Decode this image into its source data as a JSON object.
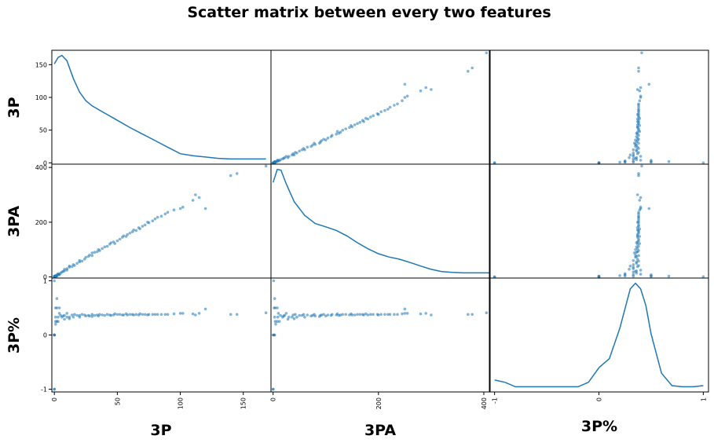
{
  "chart_data": {
    "type": "scatter",
    "title": "Scatter matrix between every two features",
    "variables": [
      "3P",
      "3PA",
      "3P%"
    ],
    "diagonal": "kde",
    "point_color": "#1f77b4",
    "line_color": "#1f77b4",
    "axes": {
      "3P": {
        "range": [
          -2,
          172
        ],
        "ticks": [
          0,
          50,
          100,
          150
        ],
        "tick_labels": [
          "0",
          "50",
          "100",
          "150"
        ]
      },
      "3PA": {
        "range": [
          -4,
          412
        ],
        "ticks": [
          0,
          200,
          400
        ],
        "tick_labels": [
          "0",
          "200",
          "400"
        ]
      },
      "3P%": {
        "range": [
          -1.05,
          1.05
        ],
        "ticks": [
          -1,
          0,
          1
        ],
        "tick_labels": [
          "-1",
          "0",
          "1"
        ]
      }
    },
    "kde": {
      "3P": {
        "x": [
          0,
          3,
          6,
          10,
          15,
          20,
          25,
          30,
          40,
          50,
          60,
          70,
          80,
          90,
          100,
          110,
          120,
          130,
          140,
          150,
          160,
          168
        ],
        "y": [
          150,
          160,
          163,
          155,
          128,
          107,
          94,
          86,
          75,
          64,
          53,
          43,
          33,
          23,
          13,
          10,
          8,
          6,
          5,
          5,
          5,
          5
        ]
      },
      "3PA": {
        "x": [
          0,
          8,
          15,
          25,
          40,
          60,
          80,
          100,
          120,
          140,
          160,
          180,
          200,
          220,
          240,
          260,
          280,
          300,
          320,
          340,
          360,
          380,
          400,
          410
        ],
        "y": [
          350,
          398,
          395,
          345,
          280,
          230,
          200,
          188,
          175,
          155,
          130,
          108,
          90,
          78,
          70,
          58,
          45,
          33,
          25,
          22,
          20,
          20,
          20,
          20
        ]
      },
      "3P%": {
        "x": [
          -1,
          -0.9,
          -0.8,
          -0.6,
          -0.4,
          -0.2,
          -0.1,
          0,
          0.1,
          0.2,
          0.3,
          0.35,
          0.4,
          0.45,
          0.5,
          0.6,
          0.7,
          0.8,
          0.9,
          1
        ],
        "y": [
          0.14,
          0.12,
          0.08,
          0.08,
          0.08,
          0.08,
          0.12,
          0.25,
          0.33,
          0.6,
          0.95,
          1.0,
          0.95,
          0.8,
          0.55,
          0.2,
          0.09,
          0.08,
          0.08,
          0.09
        ]
      }
    },
    "points": [
      {
        "3P": 0,
        "3PA": 0,
        "3P%": 0
      },
      {
        "3P": 0,
        "3PA": 1,
        "3P%": 0
      },
      {
        "3P": 0,
        "3PA": 2,
        "3P%": 0
      },
      {
        "3P": 0,
        "3PA": 3,
        "3P%": 0
      },
      {
        "3P": 0,
        "3PA": 0,
        "3P%": -1
      },
      {
        "3P": 0,
        "3PA": 0,
        "3P%": -1
      },
      {
        "3P": 0,
        "3PA": 1,
        "3P%": 1
      },
      {
        "3P": 1,
        "3PA": 2,
        "3P%": 0.5
      },
      {
        "3P": 1,
        "3PA": 3,
        "3P%": 0.33
      },
      {
        "3P": 1,
        "3PA": 4,
        "3P%": 0.25
      },
      {
        "3P": 1,
        "3PA": 5,
        "3P%": 0.2
      },
      {
        "3P": 2,
        "3PA": 4,
        "3P%": 0.5
      },
      {
        "3P": 2,
        "3PA": 3,
        "3P%": 0.67
      },
      {
        "3P": 2,
        "3PA": 8,
        "3P%": 0.25
      },
      {
        "3P": 3,
        "3PA": 9,
        "3P%": 0.33
      },
      {
        "3P": 3,
        "3PA": 12,
        "3P%": 0.25
      },
      {
        "3P": 4,
        "3PA": 8,
        "3P%": 0.5
      },
      {
        "3P": 4,
        "3PA": 10,
        "3P%": 0.4
      },
      {
        "3P": 5,
        "3PA": 14,
        "3P%": 0.36
      },
      {
        "3P": 6,
        "3PA": 18,
        "3P%": 0.33
      },
      {
        "3P": 7,
        "3PA": 20,
        "3P%": 0.35
      },
      {
        "3P": 8,
        "3PA": 22,
        "3P%": 0.36
      },
      {
        "3P": 8,
        "3PA": 28,
        "3P%": 0.29
      },
      {
        "3P": 10,
        "3PA": 25,
        "3P%": 0.4
      },
      {
        "3P": 10,
        "3PA": 30,
        "3P%": 0.33
      },
      {
        "3P": 12,
        "3PA": 36,
        "3P%": 0.33
      },
      {
        "3P": 12,
        "3PA": 40,
        "3P%": 0.3
      },
      {
        "3P": 14,
        "3PA": 38,
        "3P%": 0.37
      },
      {
        "3P": 15,
        "3PA": 45,
        "3P%": 0.33
      },
      {
        "3P": 16,
        "3PA": 42,
        "3P%": 0.38
      },
      {
        "3P": 18,
        "3PA": 50,
        "3P%": 0.36
      },
      {
        "3P": 20,
        "3PA": 55,
        "3P%": 0.36
      },
      {
        "3P": 20,
        "3PA": 60,
        "3P%": 0.33
      },
      {
        "3P": 22,
        "3PA": 58,
        "3P%": 0.38
      },
      {
        "3P": 24,
        "3PA": 65,
        "3P%": 0.37
      },
      {
        "3P": 25,
        "3PA": 72,
        "3P%": 0.35
      },
      {
        "3P": 27,
        "3PA": 75,
        "3P%": 0.36
      },
      {
        "3P": 28,
        "3PA": 80,
        "3P%": 0.35
      },
      {
        "3P": 30,
        "3PA": 78,
        "3P%": 0.38
      },
      {
        "3P": 30,
        "3PA": 88,
        "3P%": 0.34
      },
      {
        "3P": 32,
        "3PA": 90,
        "3P%": 0.36
      },
      {
        "3P": 34,
        "3PA": 92,
        "3P%": 0.37
      },
      {
        "3P": 35,
        "3PA": 100,
        "3P%": 0.35
      },
      {
        "3P": 36,
        "3PA": 96,
        "3P%": 0.38
      },
      {
        "3P": 38,
        "3PA": 104,
        "3P%": 0.37
      },
      {
        "3P": 40,
        "3PA": 110,
        "3P%": 0.36
      },
      {
        "3P": 42,
        "3PA": 112,
        "3P%": 0.38
      },
      {
        "3P": 44,
        "3PA": 120,
        "3P%": 0.37
      },
      {
        "3P": 45,
        "3PA": 125,
        "3P%": 0.36
      },
      {
        "3P": 47,
        "3PA": 128,
        "3P%": 0.37
      },
      {
        "3P": 48,
        "3PA": 122,
        "3P%": 0.39
      },
      {
        "3P": 50,
        "3PA": 132,
        "3P%": 0.38
      },
      {
        "3P": 52,
        "3PA": 138,
        "3P%": 0.38
      },
      {
        "3P": 54,
        "3PA": 145,
        "3P%": 0.37
      },
      {
        "3P": 55,
        "3PA": 150,
        "3P%": 0.37
      },
      {
        "3P": 57,
        "3PA": 148,
        "3P%": 0.39
      },
      {
        "3P": 58,
        "3PA": 155,
        "3P%": 0.37
      },
      {
        "3P": 60,
        "3PA": 160,
        "3P%": 0.38
      },
      {
        "3P": 62,
        "3PA": 165,
        "3P%": 0.38
      },
      {
        "3P": 63,
        "3PA": 172,
        "3P%": 0.37
      },
      {
        "3P": 65,
        "3PA": 170,
        "3P%": 0.38
      },
      {
        "3P": 67,
        "3PA": 180,
        "3P%": 0.37
      },
      {
        "3P": 68,
        "3PA": 176,
        "3P%": 0.39
      },
      {
        "3P": 70,
        "3PA": 185,
        "3P%": 0.38
      },
      {
        "3P": 72,
        "3PA": 190,
        "3P%": 0.38
      },
      {
        "3P": 74,
        "3PA": 200,
        "3P%": 0.37
      },
      {
        "3P": 75,
        "3PA": 198,
        "3P%": 0.38
      },
      {
        "3P": 78,
        "3PA": 205,
        "3P%": 0.38
      },
      {
        "3P": 80,
        "3PA": 212,
        "3P%": 0.38
      },
      {
        "3P": 82,
        "3PA": 218,
        "3P%": 0.38
      },
      {
        "3P": 85,
        "3PA": 222,
        "3P%": 0.38
      },
      {
        "3P": 88,
        "3PA": 230,
        "3P%": 0.38
      },
      {
        "3P": 90,
        "3PA": 236,
        "3P%": 0.38
      },
      {
        "3P": 95,
        "3PA": 245,
        "3P%": 0.39
      },
      {
        "3P": 100,
        "3PA": 250,
        "3P%": 0.4
      },
      {
        "3P": 102,
        "3PA": 255,
        "3P%": 0.4
      },
      {
        "3P": 110,
        "3PA": 280,
        "3P%": 0.39
      },
      {
        "3P": 112,
        "3PA": 300,
        "3P%": 0.37
      },
      {
        "3P": 115,
        "3PA": 290,
        "3P%": 0.4
      },
      {
        "3P": 120,
        "3PA": 250,
        "3P%": 0.48
      },
      {
        "3P": 140,
        "3PA": 370,
        "3P%": 0.38
      },
      {
        "3P": 145,
        "3PA": 378,
        "3P%": 0.38
      },
      {
        "3P": 168,
        "3PA": 405,
        "3P%": 0.41
      }
    ],
    "grid": false,
    "legend": "none"
  }
}
